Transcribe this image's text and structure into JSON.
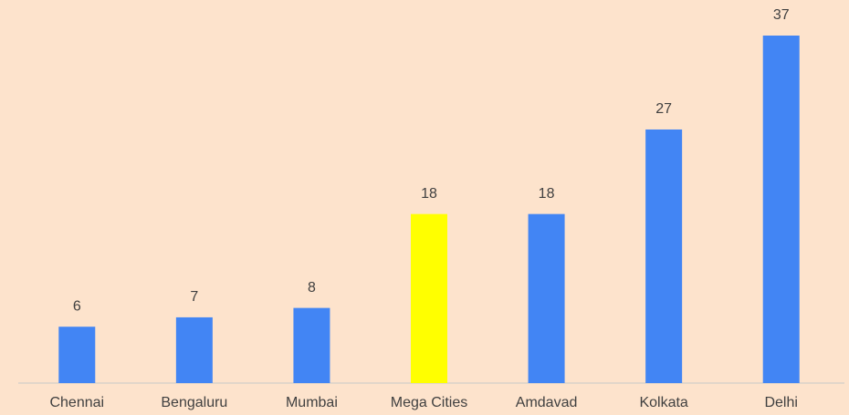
{
  "chart_data": {
    "type": "bar",
    "categories": [
      "Chennai",
      "Bengaluru",
      "Mumbai",
      "Mega Cities",
      "Amdavad",
      "Kolkata",
      "Delhi"
    ],
    "values": [
      6,
      7,
      8,
      18,
      18,
      27,
      37
    ],
    "colors": [
      "#4285f4",
      "#4285f4",
      "#4285f4",
      "#ffff00",
      "#4285f4",
      "#4285f4",
      "#4285f4"
    ],
    "ylim": [
      0,
      37
    ]
  }
}
